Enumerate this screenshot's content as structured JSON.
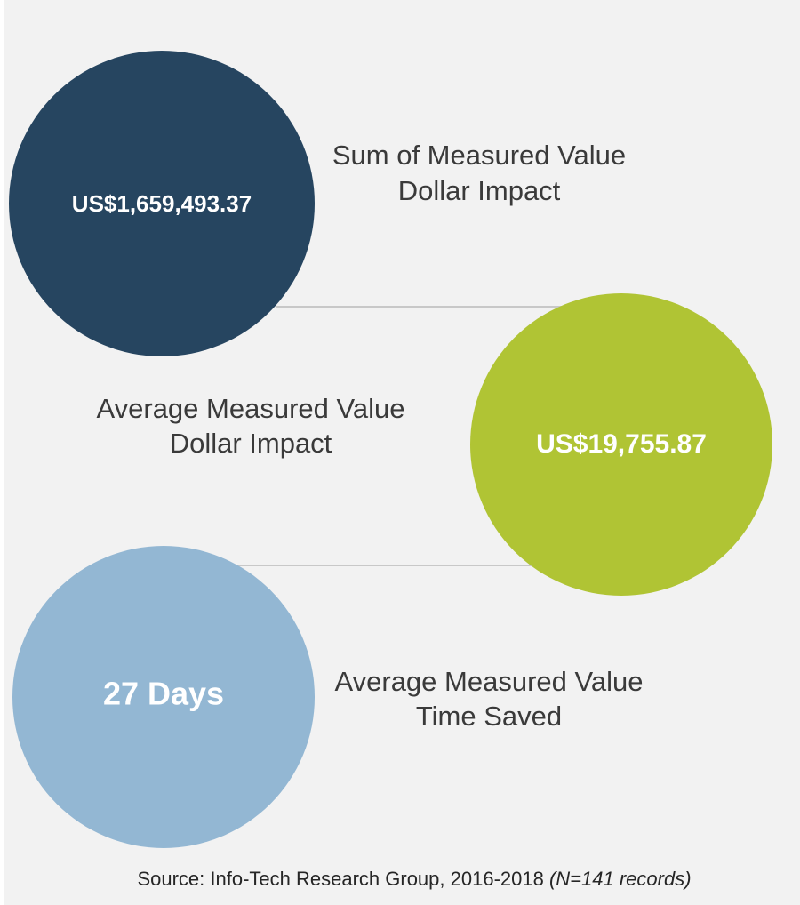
{
  "items": [
    {
      "value": "US$1,659,493.37",
      "label": [
        "Sum of Measured Value",
        "Dollar Impact"
      ]
    },
    {
      "value": "US$19,755.87",
      "label": [
        "Average Measured Value",
        "Dollar Impact"
      ]
    },
    {
      "value": "27 Days",
      "label": [
        "Average Measured Value",
        "Time Saved"
      ]
    }
  ],
  "source": {
    "text": "Source: Info-Tech Research Group, 2016-2018",
    "note": "(N=141 records)"
  }
}
